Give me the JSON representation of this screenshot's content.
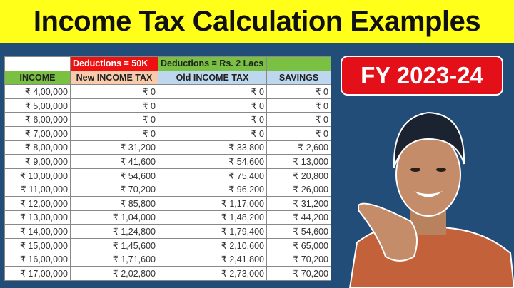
{
  "title": "Income Tax Calculation Examples",
  "badge": "FY 2023-24",
  "table": {
    "group_headers": {
      "new": "Deductions = 50K",
      "old": "Deductions = Rs. 2 Lacs"
    },
    "columns": [
      "INCOME",
      "New INCOME TAX",
      "Old INCOME TAX",
      "SAVINGS"
    ],
    "rows": [
      [
        "₹ 4,00,000",
        "₹ 0",
        "₹ 0",
        "₹ 0"
      ],
      [
        "₹ 5,00,000",
        "₹ 0",
        "₹ 0",
        "₹ 0"
      ],
      [
        "₹ 6,00,000",
        "₹ 0",
        "₹ 0",
        "₹ 0"
      ],
      [
        "₹ 7,00,000",
        "₹ 0",
        "₹ 0",
        "₹ 0"
      ],
      [
        "₹ 8,00,000",
        "₹ 31,200",
        "₹ 33,800",
        "₹ 2,600"
      ],
      [
        "₹ 9,00,000",
        "₹ 41,600",
        "₹ 54,600",
        "₹ 13,000"
      ],
      [
        "₹ 10,00,000",
        "₹ 54,600",
        "₹ 75,400",
        "₹ 20,800"
      ],
      [
        "₹ 11,00,000",
        "₹ 70,200",
        "₹ 96,200",
        "₹ 26,000"
      ],
      [
        "₹ 12,00,000",
        "₹ 85,800",
        "₹ 1,17,000",
        "₹ 31,200"
      ],
      [
        "₹ 13,00,000",
        "₹ 1,04,000",
        "₹ 1,48,200",
        "₹ 44,200"
      ],
      [
        "₹ 14,00,000",
        "₹ 1,24,800",
        "₹ 1,79,400",
        "₹ 54,600"
      ],
      [
        "₹ 15,00,000",
        "₹ 1,45,600",
        "₹ 2,10,600",
        "₹ 65,000"
      ],
      [
        "₹ 16,00,000",
        "₹ 1,71,600",
        "₹ 2,41,800",
        "₹ 70,200"
      ],
      [
        "₹ 17,00,000",
        "₹ 2,02,800",
        "₹ 2,73,000",
        "₹ 70,200"
      ]
    ]
  },
  "colors": {
    "banner": "#ffff1a",
    "background": "#234d79",
    "badge": "#e3101a",
    "group_new": "#ee1111",
    "group_old": "#7ac143"
  }
}
